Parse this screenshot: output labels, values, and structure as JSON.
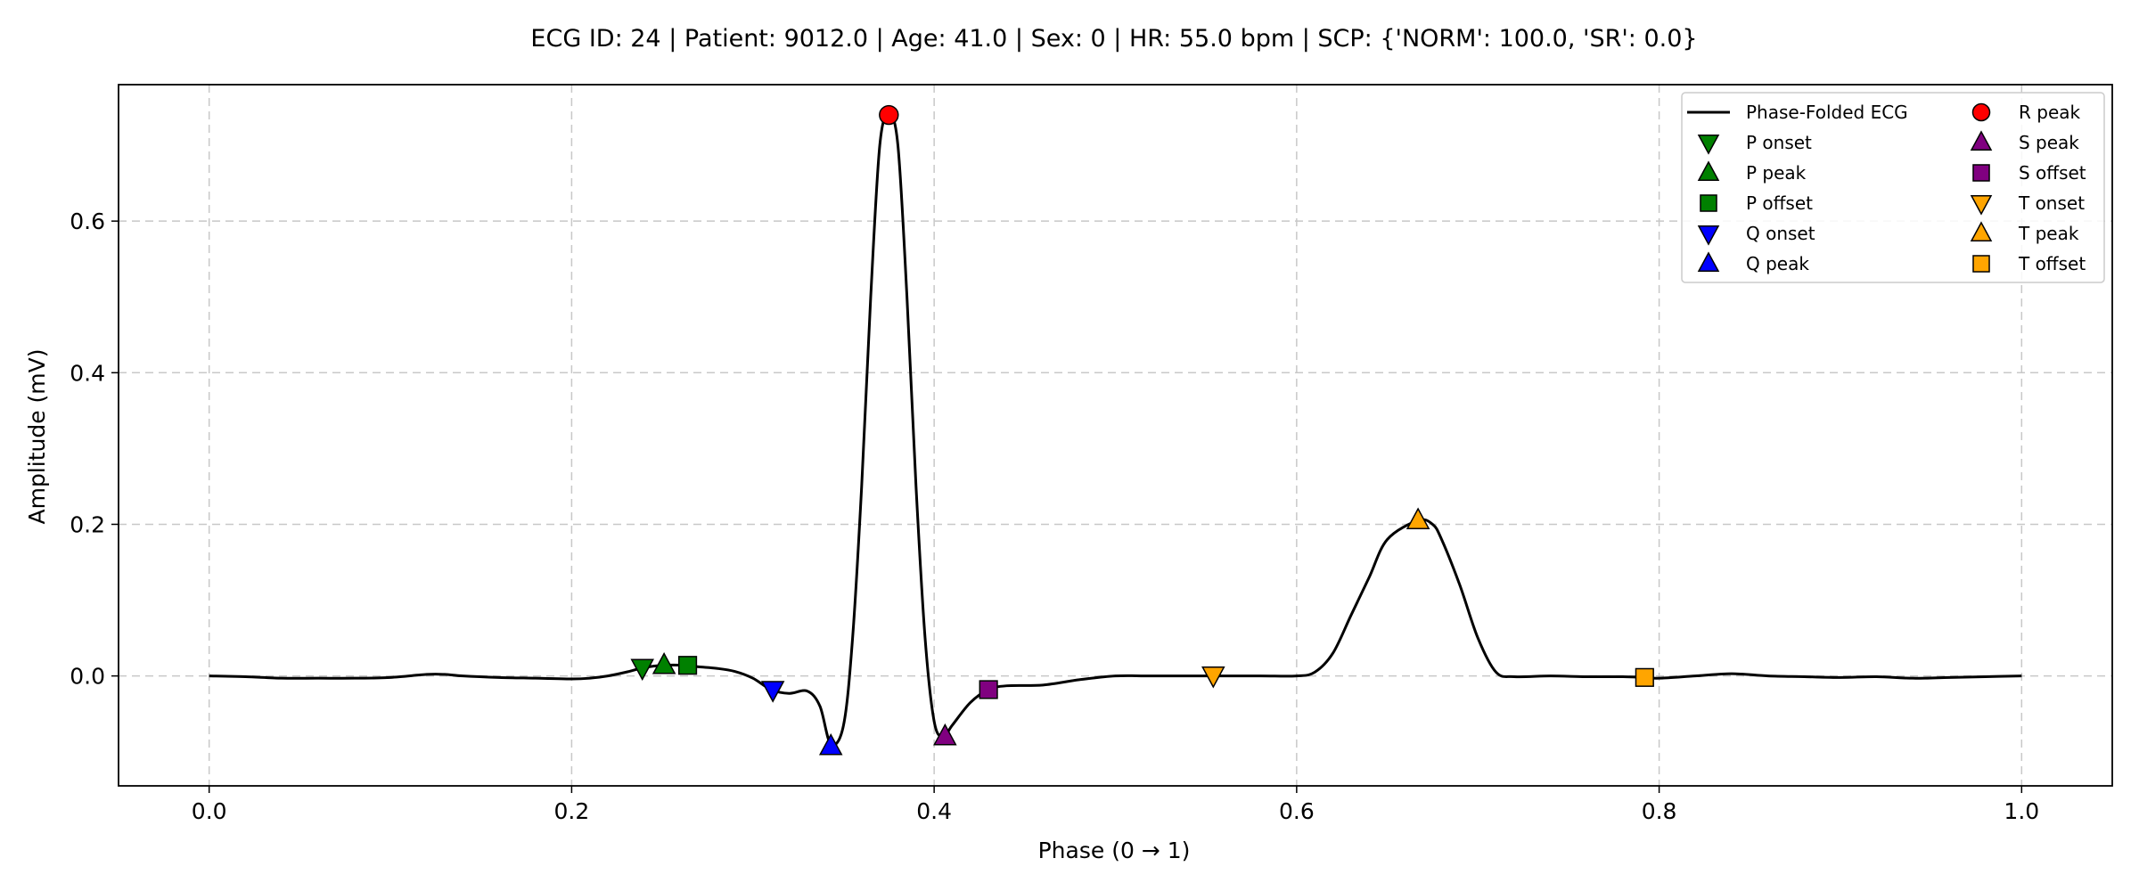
{
  "chart_data": {
    "type": "line",
    "title": "ECG ID: 24 | Patient: 9012.0 | Age: 41.0 | Sex: 0 | HR: 55.0 bpm | SCP: {'NORM': 100.0, 'SR': 0.0}",
    "xlabel": "Phase (0 → 1)",
    "ylabel": "Amplitude (mV)",
    "xlim": [
      -0.05,
      1.05
    ],
    "ylim": [
      -0.145,
      0.78
    ],
    "grid": true,
    "legend_position": "top-right",
    "xticks": [
      {
        "value": 0.0,
        "label": "0.0"
      },
      {
        "value": 0.2,
        "label": "0.2"
      },
      {
        "value": 0.4,
        "label": "0.4"
      },
      {
        "value": 0.6,
        "label": "0.6"
      },
      {
        "value": 0.8,
        "label": "0.8"
      },
      {
        "value": 1.0,
        "label": "1.0"
      }
    ],
    "yticks": [
      {
        "value": 0.0,
        "label": "0.0"
      },
      {
        "value": 0.2,
        "label": "0.2"
      },
      {
        "value": 0.4,
        "label": "0.4"
      },
      {
        "value": 0.6,
        "label": "0.6"
      }
    ],
    "series": [
      {
        "name": "Phase-Folded ECG",
        "color": "#000000",
        "points": [
          [
            0.0,
            0.0
          ],
          [
            0.02,
            -0.001
          ],
          [
            0.04,
            -0.003
          ],
          [
            0.06,
            -0.003
          ],
          [
            0.08,
            -0.003
          ],
          [
            0.1,
            -0.002
          ],
          [
            0.12,
            0.002
          ],
          [
            0.13,
            0.002
          ],
          [
            0.14,
            0.0
          ],
          [
            0.16,
            -0.002
          ],
          [
            0.18,
            -0.003
          ],
          [
            0.2,
            -0.004
          ],
          [
            0.21,
            -0.003
          ],
          [
            0.22,
            0.0
          ],
          [
            0.23,
            0.005
          ],
          [
            0.24,
            0.011
          ],
          [
            0.25,
            0.014
          ],
          [
            0.263,
            0.014
          ],
          [
            0.27,
            0.012
          ],
          [
            0.28,
            0.01
          ],
          [
            0.29,
            0.006
          ],
          [
            0.3,
            -0.003
          ],
          [
            0.31,
            -0.018
          ],
          [
            0.32,
            -0.023
          ],
          [
            0.33,
            -0.02
          ],
          [
            0.337,
            -0.04
          ],
          [
            0.343,
            -0.09
          ],
          [
            0.35,
            -0.065
          ],
          [
            0.355,
            0.05
          ],
          [
            0.36,
            0.25
          ],
          [
            0.365,
            0.5
          ],
          [
            0.37,
            0.7
          ],
          [
            0.375,
            0.74
          ],
          [
            0.38,
            0.7
          ],
          [
            0.385,
            0.5
          ],
          [
            0.39,
            0.25
          ],
          [
            0.395,
            0.05
          ],
          [
            0.4,
            -0.06
          ],
          [
            0.405,
            -0.08
          ],
          [
            0.41,
            -0.065
          ],
          [
            0.42,
            -0.035
          ],
          [
            0.43,
            -0.018
          ],
          [
            0.44,
            -0.013
          ],
          [
            0.46,
            -0.012
          ],
          [
            0.48,
            -0.005
          ],
          [
            0.5,
            0.0
          ],
          [
            0.52,
            0.0
          ],
          [
            0.553,
            0.0
          ],
          [
            0.58,
            0.0
          ],
          [
            0.6,
            0.0
          ],
          [
            0.61,
            0.005
          ],
          [
            0.62,
            0.03
          ],
          [
            0.63,
            0.08
          ],
          [
            0.64,
            0.13
          ],
          [
            0.65,
            0.18
          ],
          [
            0.667,
            0.205
          ],
          [
            0.675,
            0.2
          ],
          [
            0.68,
            0.18
          ],
          [
            0.69,
            0.12
          ],
          [
            0.7,
            0.05
          ],
          [
            0.71,
            0.005
          ],
          [
            0.72,
            -0.001
          ],
          [
            0.74,
            0.0
          ],
          [
            0.76,
            -0.001
          ],
          [
            0.78,
            -0.001
          ],
          [
            0.792,
            -0.002
          ],
          [
            0.8,
            -0.003
          ],
          [
            0.82,
            0.0
          ],
          [
            0.84,
            0.003
          ],
          [
            0.86,
            0.0
          ],
          [
            0.88,
            -0.001
          ],
          [
            0.9,
            -0.002
          ],
          [
            0.92,
            -0.001
          ],
          [
            0.94,
            -0.003
          ],
          [
            0.96,
            -0.002
          ],
          [
            0.98,
            -0.001
          ],
          [
            1.0,
            0.0
          ]
        ]
      }
    ],
    "markers": [
      {
        "name": "P onset",
        "x": 0.239,
        "y": 0.011,
        "shape": "triangle-down",
        "color": "#008000"
      },
      {
        "name": "P peak",
        "x": 0.251,
        "y": 0.014,
        "shape": "triangle-up",
        "color": "#008000"
      },
      {
        "name": "P offset",
        "x": 0.264,
        "y": 0.014,
        "shape": "square",
        "color": "#008000"
      },
      {
        "name": "Q onset",
        "x": 0.311,
        "y": -0.018,
        "shape": "triangle-down",
        "color": "#0000ff"
      },
      {
        "name": "Q peak",
        "x": 0.343,
        "y": -0.093,
        "shape": "triangle-up",
        "color": "#0000ff"
      },
      {
        "name": "R peak",
        "x": 0.375,
        "y": 0.74,
        "shape": "circle",
        "color": "#ff0000"
      },
      {
        "name": "S peak",
        "x": 0.406,
        "y": -0.08,
        "shape": "triangle-up",
        "color": "#800080"
      },
      {
        "name": "S offset",
        "x": 0.43,
        "y": -0.018,
        "shape": "square",
        "color": "#800080"
      },
      {
        "name": "T onset",
        "x": 0.554,
        "y": 0.001,
        "shape": "triangle-down",
        "color": "#ffa500"
      },
      {
        "name": "T peak",
        "x": 0.667,
        "y": 0.205,
        "shape": "triangle-up",
        "color": "#ffa500"
      },
      {
        "name": "T offset",
        "x": 0.792,
        "y": -0.002,
        "shape": "square",
        "color": "#ffa500"
      }
    ],
    "legend": {
      "columns": [
        [
          {
            "label": "Phase-Folded ECG",
            "shape": "line",
            "color": "#000000"
          },
          {
            "label": "P onset",
            "shape": "triangle-down",
            "color": "#008000"
          },
          {
            "label": "P peak",
            "shape": "triangle-up",
            "color": "#008000"
          },
          {
            "label": "P offset",
            "shape": "square",
            "color": "#008000"
          },
          {
            "label": "Q onset",
            "shape": "triangle-down",
            "color": "#0000ff"
          },
          {
            "label": "Q peak",
            "shape": "triangle-up",
            "color": "#0000ff"
          }
        ],
        [
          {
            "label": "R peak",
            "shape": "circle",
            "color": "#ff0000"
          },
          {
            "label": "S peak",
            "shape": "triangle-up",
            "color": "#800080"
          },
          {
            "label": "S offset",
            "shape": "square",
            "color": "#800080"
          },
          {
            "label": "T onset",
            "shape": "triangle-down",
            "color": "#ffa500"
          },
          {
            "label": "T peak",
            "shape": "triangle-up",
            "color": "#ffa500"
          },
          {
            "label": "T offset",
            "shape": "square",
            "color": "#ffa500"
          }
        ]
      ]
    }
  }
}
